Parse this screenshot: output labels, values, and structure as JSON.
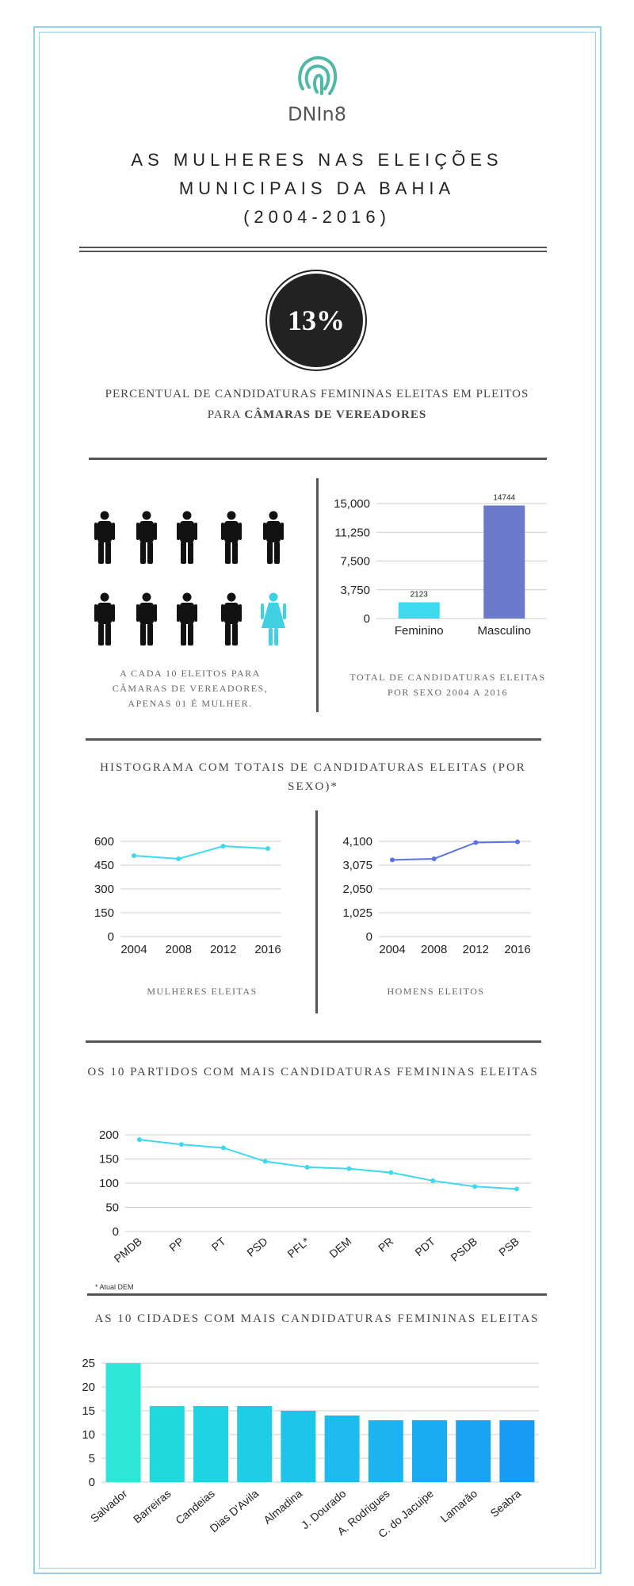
{
  "brand": {
    "name": "DNIn8"
  },
  "title": {
    "line1": "AS MULHERES NAS ELEIÇÕES",
    "line2": "MUNICIPAIS DA BAHIA",
    "line3": "(2004-2016)"
  },
  "stat": {
    "value": "13%",
    "caption_prefix": "PERCENTUAL DE CANDIDATURAS FEMININAS ELEITAS EM PLEITOS PARA ",
    "caption_bold": "CÂMARAS DE VEREADORES"
  },
  "people": {
    "caption": "A CADA 10 ELEITOS PARA CÂMARAS DE VEREADORES, APENAS 01 É MULHER.",
    "women": 1,
    "total": 10
  },
  "totals_caption": "TOTAL DE CANDIDATURAS ELEITAS POR SEXO 2004 A 2016",
  "histogram": {
    "title": "HISTOGRAMA COM TOTAIS DE CANDIDATURAS ELEITAS (POR SEXO)*",
    "women_caption": "MULHERES ELEITAS",
    "men_caption": "HOMENS ELEITOS"
  },
  "parties": {
    "title": "OS 10 PARTIDOS COM MAIS CANDIDATURAS FEMININAS ELEITAS",
    "note": "* Atual DEM"
  },
  "cities": {
    "title": "AS 10 CIDADES COM MAIS CANDIDATURAS FEMININAS ELEITAS"
  },
  "colors": {
    "cyan": "#3dd9ec",
    "indigo": "#6a79c9",
    "blue_line": "#5b72e6",
    "woman": "#3fd0e4",
    "man": "#111111",
    "frame": "#8fd3ea"
  },
  "chart_data": [
    {
      "id": "totals",
      "type": "bar",
      "categories": [
        "Feminino",
        "Masculino"
      ],
      "values": [
        2123,
        14744
      ],
      "colors": [
        "#3dd9ec",
        "#6a79c9"
      ],
      "ylim": [
        0,
        15000
      ],
      "yticks": [
        0,
        3750,
        7500,
        11250,
        15000
      ],
      "ytick_labels": [
        "0",
        "3,750",
        "7,500",
        "11,250",
        "15,000"
      ],
      "data_labels": [
        "2123",
        "14744"
      ]
    },
    {
      "id": "women",
      "type": "line",
      "x": [
        "2004",
        "2008",
        "2012",
        "2016"
      ],
      "values": [
        510,
        490,
        570,
        555
      ],
      "ylim": [
        0,
        600
      ],
      "yticks": [
        0,
        150,
        300,
        450,
        600
      ],
      "ytick_labels": [
        "0",
        "150",
        "300",
        "450",
        "600"
      ],
      "color": "#3dd9ec"
    },
    {
      "id": "men",
      "type": "line",
      "x": [
        "2004",
        "2008",
        "2012",
        "2016"
      ],
      "values": [
        3300,
        3350,
        4050,
        4080
      ],
      "ylim": [
        0,
        4100
      ],
      "yticks": [
        0,
        1025,
        2050,
        3075,
        4100
      ],
      "ytick_labels": [
        "0",
        "1,025",
        "2,050",
        "3,075",
        "4,100"
      ],
      "color": "#5b72e6"
    },
    {
      "id": "parties",
      "type": "line",
      "x": [
        "PMDB",
        "PP",
        "PT",
        "PSD",
        "PFL*",
        "DEM",
        "PR",
        "PDT",
        "PSDB",
        "PSB"
      ],
      "values": [
        190,
        180,
        173,
        145,
        133,
        130,
        122,
        105,
        93,
        88
      ],
      "ylim": [
        0,
        200
      ],
      "yticks": [
        0,
        50,
        100,
        150,
        200
      ],
      "ytick_labels": [
        "0",
        "50",
        "100",
        "150",
        "200"
      ],
      "color": "#3dd9ec"
    },
    {
      "id": "cities",
      "type": "bar",
      "categories": [
        "Salvador",
        "Barreiras",
        "Candeias",
        "Dias D'Avila",
        "Almadina",
        "J. Dourado",
        "A. Rodrigues",
        "C. do Jacuipe",
        "Lamarão",
        "Seabra"
      ],
      "values": [
        25,
        16,
        16,
        16,
        15,
        14,
        13,
        13,
        13,
        13
      ],
      "colors": [
        "#2ee6d6",
        "#1fd9df",
        "#1fd3e2",
        "#1fcde6",
        "#1ec5ea",
        "#1ebcee",
        "#1cb4f0",
        "#1aabf2",
        "#19a3f3",
        "#179bf4"
      ],
      "ylim": [
        0,
        25
      ],
      "yticks": [
        0,
        5,
        10,
        15,
        20,
        25
      ],
      "ytick_labels": [
        "0",
        "5",
        "10",
        "15",
        "20",
        "25"
      ]
    }
  ]
}
